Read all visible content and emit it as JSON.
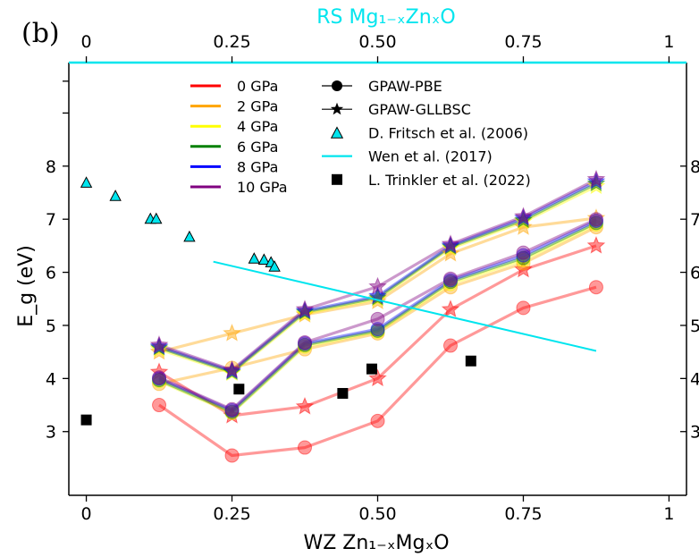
{
  "panel_label": "(b)",
  "chart_data": {
    "type": "line",
    "title": "",
    "xlabel": "WZ Zn₁₋ₓMgₓO",
    "x2label": "RS Mg₁₋ₓZnₓO",
    "ylabel": "E_g (eV)",
    "xlim": [
      -0.03,
      1.03
    ],
    "ylim": [
      1.8,
      9.95
    ],
    "x_ticks": [
      "0",
      "0.25",
      "0.50",
      "0.75",
      "1"
    ],
    "x2_ticks": [
      "0",
      "0.25",
      "0.50",
      "0.75",
      "1"
    ],
    "y_ticks": [
      "3",
      "4",
      "5",
      "6",
      "7",
      "8"
    ],
    "y_ticks_right": [
      "3",
      "4",
      "5",
      "6",
      "7",
      "8"
    ],
    "x_tick_values": [
      0,
      0.25,
      0.5,
      0.75,
      1
    ],
    "y_tick_values": [
      3,
      4,
      5,
      6,
      7,
      8
    ],
    "grid": false,
    "legend_position": "top-center",
    "pressure_legend": [
      {
        "label": "0 GPa",
        "color": "#ff0000"
      },
      {
        "label": "2 GPa",
        "color": "#ffa500"
      },
      {
        "label": "4 GPa",
        "color": "#ffff00"
      },
      {
        "label": "6 GPa",
        "color": "#008000"
      },
      {
        "label": "8 GPa",
        "color": "#0000ff"
      },
      {
        "label": "10 GPa",
        "color": "#800080"
      }
    ],
    "method_legend": [
      {
        "label": "GPAW-PBE",
        "marker": "circle"
      },
      {
        "label": "GPAW-GLLBSC",
        "marker": "star"
      },
      {
        "label": "D. Fritsch et al. (2006)",
        "marker": "triangle"
      },
      {
        "label": "Wen et al. (2017)",
        "marker": "line"
      },
      {
        "label": "L. Trinkler et al. (2022)",
        "marker": "square"
      }
    ],
    "series": [
      {
        "name": "0 GPa",
        "method": "GPAW-PBE",
        "color": "#ff0000",
        "x": [
          0.125,
          0.25,
          0.375,
          0.5,
          0.625,
          0.75,
          0.875
        ],
        "values": [
          3.5,
          2.55,
          2.7,
          3.2,
          4.62,
          5.33,
          5.72
        ]
      },
      {
        "name": "0 GPa",
        "method": "GPAW-GLLBSC",
        "color": "#ff0000",
        "x": [
          0.125,
          0.25,
          0.375,
          0.5,
          0.625,
          0.75,
          0.875
        ],
        "values": [
          4.12,
          3.3,
          3.47,
          4.0,
          5.3,
          6.05,
          6.5
        ]
      },
      {
        "name": "2 GPa",
        "method": "GPAW-PBE",
        "color": "#ffa500",
        "x": [
          0.125,
          0.25,
          0.375,
          0.5,
          0.625,
          0.75,
          0.875
        ],
        "values": [
          3.9,
          4.2,
          4.55,
          4.85,
          5.72,
          6.17,
          6.85
        ]
      },
      {
        "name": "2 GPa",
        "method": "GPAW-GLLBSC",
        "color": "#ffa500",
        "x": [
          0.125,
          0.25,
          0.375,
          0.5,
          0.625,
          0.75,
          0.875
        ],
        "values": [
          4.5,
          4.85,
          5.2,
          5.45,
          6.35,
          6.85,
          7.02
        ]
      },
      {
        "name": "4 GPa",
        "method": "GPAW-PBE",
        "color": "#ffff00",
        "x": [
          0.125,
          0.25,
          0.375,
          0.5,
          0.625,
          0.75,
          0.875
        ],
        "values": [
          3.95,
          3.35,
          4.6,
          4.88,
          5.78,
          6.23,
          6.9
        ]
      },
      {
        "name": "4 GPa",
        "method": "GPAW-GLLBSC",
        "color": "#ffff00",
        "x": [
          0.125,
          0.25,
          0.375,
          0.5,
          0.625,
          0.75,
          0.875
        ],
        "values": [
          4.55,
          4.1,
          5.22,
          5.5,
          6.45,
          6.95,
          7.62
        ]
      },
      {
        "name": "6 GPa",
        "method": "GPAW-PBE",
        "color": "#008000",
        "x": [
          0.125,
          0.25,
          0.375,
          0.5,
          0.625,
          0.75,
          0.875
        ],
        "values": [
          3.97,
          3.37,
          4.63,
          4.9,
          5.82,
          6.27,
          6.93
        ]
      },
      {
        "name": "6 GPa",
        "method": "GPAW-GLLBSC",
        "color": "#008000",
        "x": [
          0.125,
          0.25,
          0.375,
          0.5,
          0.625,
          0.75,
          0.875
        ],
        "values": [
          4.58,
          4.12,
          5.25,
          5.52,
          6.48,
          6.98,
          7.67
        ]
      },
      {
        "name": "8 GPa",
        "method": "GPAW-PBE",
        "color": "#0000ff",
        "x": [
          0.125,
          0.25,
          0.375,
          0.5,
          0.625,
          0.75,
          0.875
        ],
        "values": [
          4.0,
          3.4,
          4.66,
          4.93,
          5.85,
          6.32,
          6.97
        ]
      },
      {
        "name": "8 GPa",
        "method": "GPAW-GLLBSC",
        "color": "#0000ff",
        "x": [
          0.125,
          0.25,
          0.375,
          0.5,
          0.625,
          0.75,
          0.875
        ],
        "values": [
          4.6,
          4.14,
          5.27,
          5.55,
          6.5,
          7.02,
          7.71
        ]
      },
      {
        "name": "10 GPa",
        "method": "GPAW-PBE",
        "color": "#800080",
        "x": [
          0.125,
          0.25,
          0.375,
          0.5,
          0.625,
          0.75,
          0.875
        ],
        "values": [
          4.02,
          3.42,
          4.68,
          5.12,
          5.88,
          6.37,
          7.0
        ]
      },
      {
        "name": "10 GPa",
        "method": "GPAW-GLLBSC",
        "color": "#800080",
        "x": [
          0.125,
          0.25,
          0.375,
          0.5,
          0.625,
          0.75,
          0.875
        ],
        "values": [
          4.63,
          4.16,
          5.3,
          5.73,
          6.53,
          7.05,
          7.75
        ]
      }
    ],
    "reference_fritsch": {
      "name": "D. Fritsch et al. (2006)",
      "color": "#00e5ee",
      "x": [
        0.0,
        0.05,
        0.11,
        0.12,
        0.177,
        0.288,
        0.305,
        0.317,
        0.323
      ],
      "values": [
        7.68,
        7.43,
        7.0,
        7.0,
        6.66,
        6.25,
        6.23,
        6.18,
        6.1
      ]
    },
    "reference_wen": {
      "name": "Wen et al. (2017)",
      "color": "#00e5ee",
      "x": [
        0.218,
        0.875
      ],
      "values": [
        6.2,
        4.52
      ]
    },
    "reference_trinkler": {
      "name": "L. Trinkler et al. (2022)",
      "color": "#000000",
      "x": [
        0.0,
        0.262,
        0.44,
        0.49,
        0.66
      ],
      "values": [
        3.22,
        3.8,
        3.72,
        4.18,
        4.33
      ]
    }
  }
}
